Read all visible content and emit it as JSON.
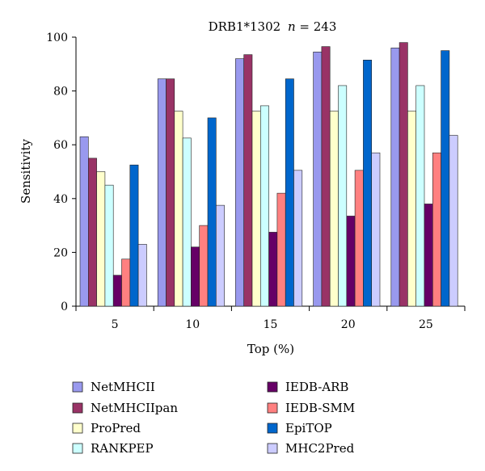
{
  "chart_data": {
    "type": "bar",
    "title_main": "DRB1*1302",
    "title_n_symbol": "n",
    "title_n_rest": " = 243",
    "xlabel": "Top (%)",
    "ylabel": "Sensitivity",
    "categories": [
      "5",
      "10",
      "15",
      "20",
      "25"
    ],
    "ylim": [
      0,
      100
    ],
    "yticks": [
      "0",
      "20",
      "40",
      "60",
      "80",
      "100"
    ],
    "grid": false,
    "legend_position": "bottom",
    "series": [
      {
        "name": "NetMHCII",
        "color": "#9999ee",
        "values": [
          63,
          84.5,
          92,
          94.5,
          96
        ]
      },
      {
        "name": "NetMHCIIpan",
        "color": "#993366",
        "values": [
          55,
          84.5,
          93.5,
          96.5,
          98
        ]
      },
      {
        "name": "ProPred",
        "color": "#ffffcc",
        "values": [
          50,
          72.5,
          72.5,
          72.5,
          72.5
        ]
      },
      {
        "name": "RANKPEP",
        "color": "#ccffff",
        "values": [
          45,
          62.5,
          74.5,
          82,
          82
        ]
      },
      {
        "name": "IEDB-ARB",
        "color": "#660066",
        "values": [
          11.5,
          22,
          27.5,
          33.5,
          38
        ]
      },
      {
        "name": "IEDB-SMM",
        "color": "#ff8080",
        "values": [
          17.5,
          30,
          42,
          50.5,
          57
        ]
      },
      {
        "name": "EpiTOP",
        "color": "#0066cc",
        "values": [
          52.5,
          70,
          84.5,
          91.5,
          95
        ]
      },
      {
        "name": "MHC2Pred",
        "color": "#ccccff",
        "values": [
          23,
          37.5,
          50.5,
          57,
          63.5
        ]
      }
    ]
  }
}
